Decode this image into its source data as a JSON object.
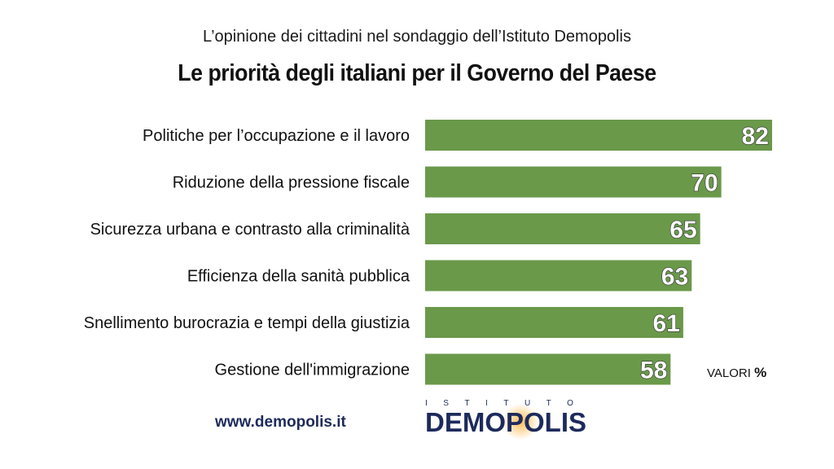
{
  "header": {
    "subtitle": "L’opinione dei cittadini nel sondaggio dell’Istituto Demopolis",
    "title": "Le priorità degli italiani per il Governo del Paese"
  },
  "chart_data": {
    "type": "bar",
    "orientation": "horizontal",
    "categories": [
      "Politiche per l’occupazione e il lavoro",
      "Riduzione della pressione fiscale",
      "Sicurezza urbana e contrasto alla criminalità",
      "Efficienza della sanità pubblica",
      "Snellimento burocrazia e tempi della giustizia",
      "Gestione dell'immigrazione"
    ],
    "values": [
      82,
      70,
      65,
      63,
      61,
      58
    ],
    "bar_color": "#6a994a",
    "units_text": "VALORI",
    "units_symbol": "%"
  },
  "footer": {
    "website": "www.demopolis.it",
    "logo_top": "ISTITUTO",
    "logo_main": "DEMOPOLIS"
  }
}
